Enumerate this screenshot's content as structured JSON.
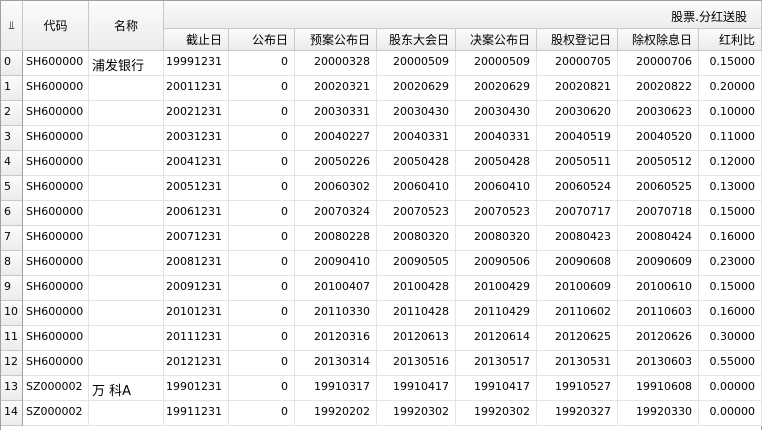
{
  "group_header": "股票.分红送股",
  "columns": [
    "代码",
    "名称",
    "截止日",
    "公布日",
    "预案公布日",
    "股东大会日",
    "决案公布日",
    "股权登记日",
    "除权除息日",
    "红利比"
  ],
  "corner_icon": "pin-icon",
  "rows": [
    [
      "0",
      "SH600000",
      "浦发银行",
      "19991231",
      "0",
      "20000328",
      "20000509",
      "20000509",
      "20000705",
      "20000706",
      "0.15000"
    ],
    [
      "1",
      "SH600000",
      "",
      "20011231",
      "0",
      "20020321",
      "20020629",
      "20020629",
      "20020821",
      "20020822",
      "0.20000"
    ],
    [
      "2",
      "SH600000",
      "",
      "20021231",
      "0",
      "20030331",
      "20030430",
      "20030430",
      "20030620",
      "20030623",
      "0.10000"
    ],
    [
      "3",
      "SH600000",
      "",
      "20031231",
      "0",
      "20040227",
      "20040331",
      "20040331",
      "20040519",
      "20040520",
      "0.11000"
    ],
    [
      "4",
      "SH600000",
      "",
      "20041231",
      "0",
      "20050226",
      "20050428",
      "20050428",
      "20050511",
      "20050512",
      "0.12000"
    ],
    [
      "5",
      "SH600000",
      "",
      "20051231",
      "0",
      "20060302",
      "20060410",
      "20060410",
      "20060524",
      "20060525",
      "0.13000"
    ],
    [
      "6",
      "SH600000",
      "",
      "20061231",
      "0",
      "20070324",
      "20070523",
      "20070523",
      "20070717",
      "20070718",
      "0.15000"
    ],
    [
      "7",
      "SH600000",
      "",
      "20071231",
      "0",
      "20080228",
      "20080320",
      "20080320",
      "20080423",
      "20080424",
      "0.16000"
    ],
    [
      "8",
      "SH600000",
      "",
      "20081231",
      "0",
      "20090410",
      "20090505",
      "20090506",
      "20090608",
      "20090609",
      "0.23000"
    ],
    [
      "9",
      "SH600000",
      "",
      "20091231",
      "0",
      "20100407",
      "20100428",
      "20100429",
      "20100609",
      "20100610",
      "0.15000"
    ],
    [
      "10",
      "SH600000",
      "",
      "20101231",
      "0",
      "20110330",
      "20110428",
      "20110429",
      "20110602",
      "20110603",
      "0.16000"
    ],
    [
      "11",
      "SH600000",
      "",
      "20111231",
      "0",
      "20120316",
      "20120613",
      "20120614",
      "20120625",
      "20120626",
      "0.30000"
    ],
    [
      "12",
      "SH600000",
      "",
      "20121231",
      "0",
      "20130314",
      "20130516",
      "20130517",
      "20130531",
      "20130603",
      "0.55000"
    ],
    [
      "13",
      "SZ000002",
      "万  科A",
      "19901231",
      "0",
      "19910317",
      "19910417",
      "19910417",
      "19910527",
      "19910608",
      "0.00000"
    ],
    [
      "14",
      "SZ000002",
      "",
      "19911231",
      "0",
      "19920202",
      "19920302",
      "19920302",
      "19920327",
      "19920330",
      "0.00000"
    ]
  ]
}
